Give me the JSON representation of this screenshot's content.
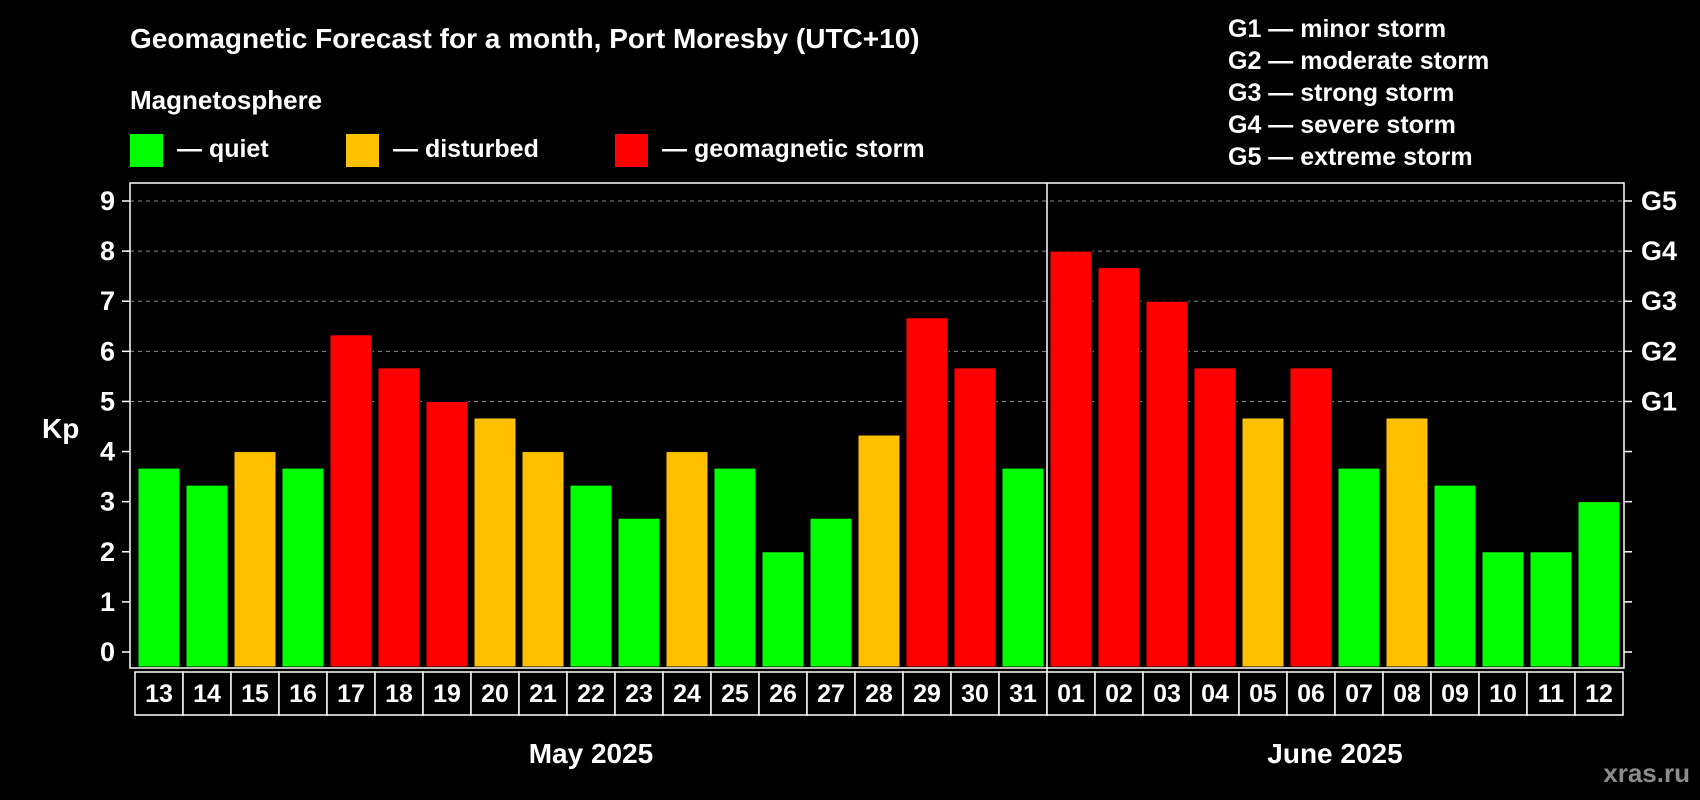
{
  "chart_data": {
    "type": "bar",
    "title": "Geomagnetic Forecast for a month, Port Moresby (UTC+10)",
    "legend_title": "Magnetosphere",
    "legend": [
      {
        "key": "quiet",
        "label": "— quiet",
        "color": "#00ff00"
      },
      {
        "key": "disturbed",
        "label": "— disturbed",
        "color": "#ffc000"
      },
      {
        "key": "storm",
        "label": "— geomagnetic storm",
        "color": "#ff0000"
      }
    ],
    "g_scale": [
      "G1 — minor storm",
      "G2 — moderate storm",
      "G3 — strong storm",
      "G4 — severe storm",
      "G5 — extreme storm"
    ],
    "ylabel": "Kp",
    "ylim": [
      0,
      9
    ],
    "yticks": [
      "0",
      "1",
      "2",
      "3",
      "4",
      "5",
      "6",
      "7",
      "8",
      "9"
    ],
    "right_axis_labels": [
      {
        "value": 5,
        "label": "G1"
      },
      {
        "value": 6,
        "label": "G2"
      },
      {
        "value": 7,
        "label": "G3"
      },
      {
        "value": 8,
        "label": "G4"
      },
      {
        "value": 9,
        "label": "G5"
      }
    ],
    "grid": "horizontal dashed from 5 to 9",
    "months": [
      {
        "label": "May 2025",
        "count": 19
      },
      {
        "label": "June 2025",
        "count": 12
      }
    ],
    "categories": [
      "13",
      "14",
      "15",
      "16",
      "17",
      "18",
      "19",
      "20",
      "21",
      "22",
      "23",
      "24",
      "25",
      "26",
      "27",
      "28",
      "29",
      "30",
      "31",
      "01",
      "02",
      "03",
      "04",
      "05",
      "06",
      "07",
      "08",
      "09",
      "10",
      "11",
      "12"
    ],
    "values": [
      3.67,
      3.33,
      4,
      3.67,
      6.33,
      5.67,
      5,
      4.67,
      4,
      3.33,
      2.67,
      4,
      3.67,
      2,
      2.67,
      4.33,
      6.67,
      5.67,
      3.67,
      8,
      7.67,
      7,
      5.67,
      4.67,
      5.67,
      3.67,
      4.67,
      3.33,
      2,
      2,
      3
    ],
    "levels": [
      "quiet",
      "quiet",
      "disturbed",
      "quiet",
      "storm",
      "storm",
      "storm",
      "disturbed",
      "disturbed",
      "quiet",
      "quiet",
      "disturbed",
      "quiet",
      "quiet",
      "quiet",
      "disturbed",
      "storm",
      "storm",
      "quiet",
      "storm",
      "storm",
      "storm",
      "storm",
      "disturbed",
      "storm",
      "quiet",
      "disturbed",
      "quiet",
      "quiet",
      "quiet",
      "quiet"
    ]
  },
  "watermark": "xras.ru"
}
